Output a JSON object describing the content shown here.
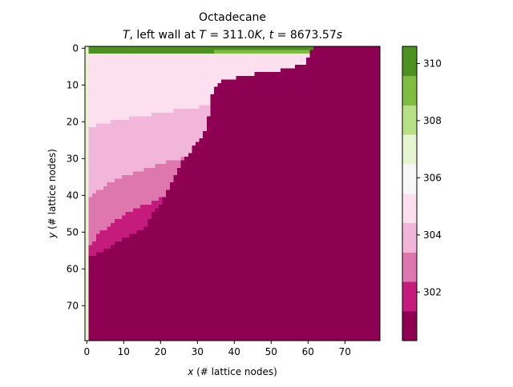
{
  "chart_data": {
    "type": "heatmap",
    "title_line1": "Octadecane",
    "title_line2": {
      "var": "T",
      "mid": ", left wall at ",
      "var2": "T",
      "val1": " = 311.0",
      "unit1": "K",
      "sep": ", ",
      "var3": "t",
      "val2": " = 8673.57",
      "unit2": "s"
    },
    "xlabel": {
      "var": "x",
      "rest": " (# lattice nodes)"
    },
    "ylabel": {
      "var": "y",
      "rest": " (# lattice nodes)"
    },
    "xlim": [
      -0.5,
      79.5
    ],
    "ylim": [
      79.5,
      -0.5
    ],
    "x_ticks": [
      0,
      10,
      20,
      30,
      40,
      50,
      60,
      70
    ],
    "y_ticks": [
      0,
      10,
      20,
      30,
      40,
      50,
      60,
      70
    ],
    "grid": false,
    "colorbar": {
      "levels": [
        300.3,
        301.33,
        302.36,
        303.39,
        304.42,
        305.45,
        306.48,
        307.51,
        308.54,
        309.57,
        310.6
      ],
      "colors": [
        "#8e0152",
        "#c51b7d",
        "#de77ae",
        "#f1b6da",
        "#fde0ef",
        "#f7f7f7",
        "#e6f5d0",
        "#b8e186",
        "#7fbc41",
        "#4d9221",
        "#276419"
      ],
      "ticks": [
        302,
        304,
        306,
        308,
        310
      ]
    },
    "field": {
      "solid_value": 300.3,
      "left_wall_column_value": 307.5,
      "melt_front": [
        [
          0,
          61
        ],
        [
          2,
          60
        ],
        [
          4,
          59
        ],
        [
          5,
          56
        ],
        [
          6,
          52
        ],
        [
          7,
          45
        ],
        [
          8,
          40
        ],
        [
          9,
          36
        ],
        [
          10,
          35
        ],
        [
          12,
          34
        ],
        [
          13,
          33
        ],
        [
          15,
          33
        ],
        [
          18,
          33
        ],
        [
          20,
          32
        ],
        [
          22,
          32
        ],
        [
          24,
          31
        ],
        [
          26,
          29
        ],
        [
          28,
          28
        ],
        [
          30,
          26
        ],
        [
          32,
          25
        ],
        [
          34,
          24
        ],
        [
          36,
          23
        ],
        [
          38,
          22
        ],
        [
          40,
          21
        ],
        [
          42,
          20
        ],
        [
          44,
          18
        ],
        [
          46,
          17
        ],
        [
          48,
          16
        ],
        [
          50,
          14
        ],
        [
          52,
          12
        ],
        [
          54,
          9
        ],
        [
          55,
          7
        ],
        [
          56,
          4
        ],
        [
          57,
          1
        ],
        [
          58,
          0
        ]
      ],
      "boundary_layer": [
        [
          0,
          0.3
        ],
        [
          4,
          0.6
        ],
        [
          8,
          1.0
        ],
        [
          14,
          1.8
        ],
        [
          20,
          2.7
        ],
        [
          26,
          3.5
        ],
        [
          32,
          4.1
        ],
        [
          38,
          4.4
        ],
        [
          44,
          4.2
        ],
        [
          50,
          4.0
        ],
        [
          56,
          4.0
        ]
      ],
      "wall_temp": 309.8,
      "bulk_temp": 305.0,
      "bottom_hot_blend": 0.18
    }
  }
}
